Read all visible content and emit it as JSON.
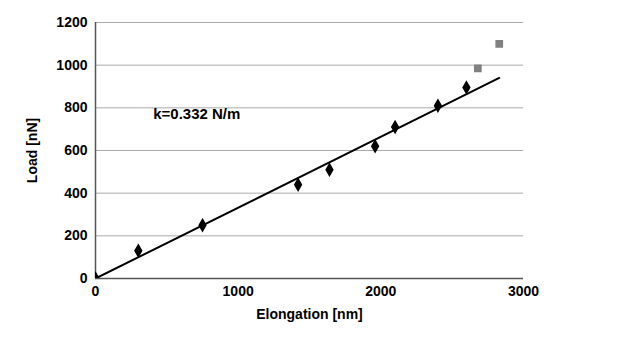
{
  "chart_data": {
    "type": "scatter",
    "xlabel": "Elongation [nm]",
    "ylabel": "Load [nN]",
    "xlim": [
      0,
      3000
    ],
    "xticks": [
      0,
      1000,
      2000,
      3000
    ],
    "ylim": [
      0,
      1200
    ],
    "yticks": [
      0,
      200,
      400,
      600,
      800,
      1000,
      1200
    ],
    "grid": true,
    "series": [
      {
        "type": "scatter",
        "marker": "diamond",
        "color": "#000000",
        "x": [
          0,
          300,
          750,
          1420,
          1640,
          1960,
          2100,
          2400,
          2600
        ],
        "values": [
          0,
          130,
          250,
          440,
          510,
          620,
          710,
          810,
          895
        ]
      },
      {
        "type": "scatter",
        "marker": "square",
        "color": "#808080",
        "x": [
          2680,
          2830
        ],
        "values": [
          985,
          1100
        ]
      },
      {
        "type": "line",
        "line_style": "solid",
        "color": "#000000",
        "x": [
          0,
          2830
        ],
        "values": [
          0,
          940
        ]
      }
    ],
    "annotations": [
      {
        "text": "k=0.332 N/m",
        "x": 710,
        "y": 770
      }
    ]
  }
}
